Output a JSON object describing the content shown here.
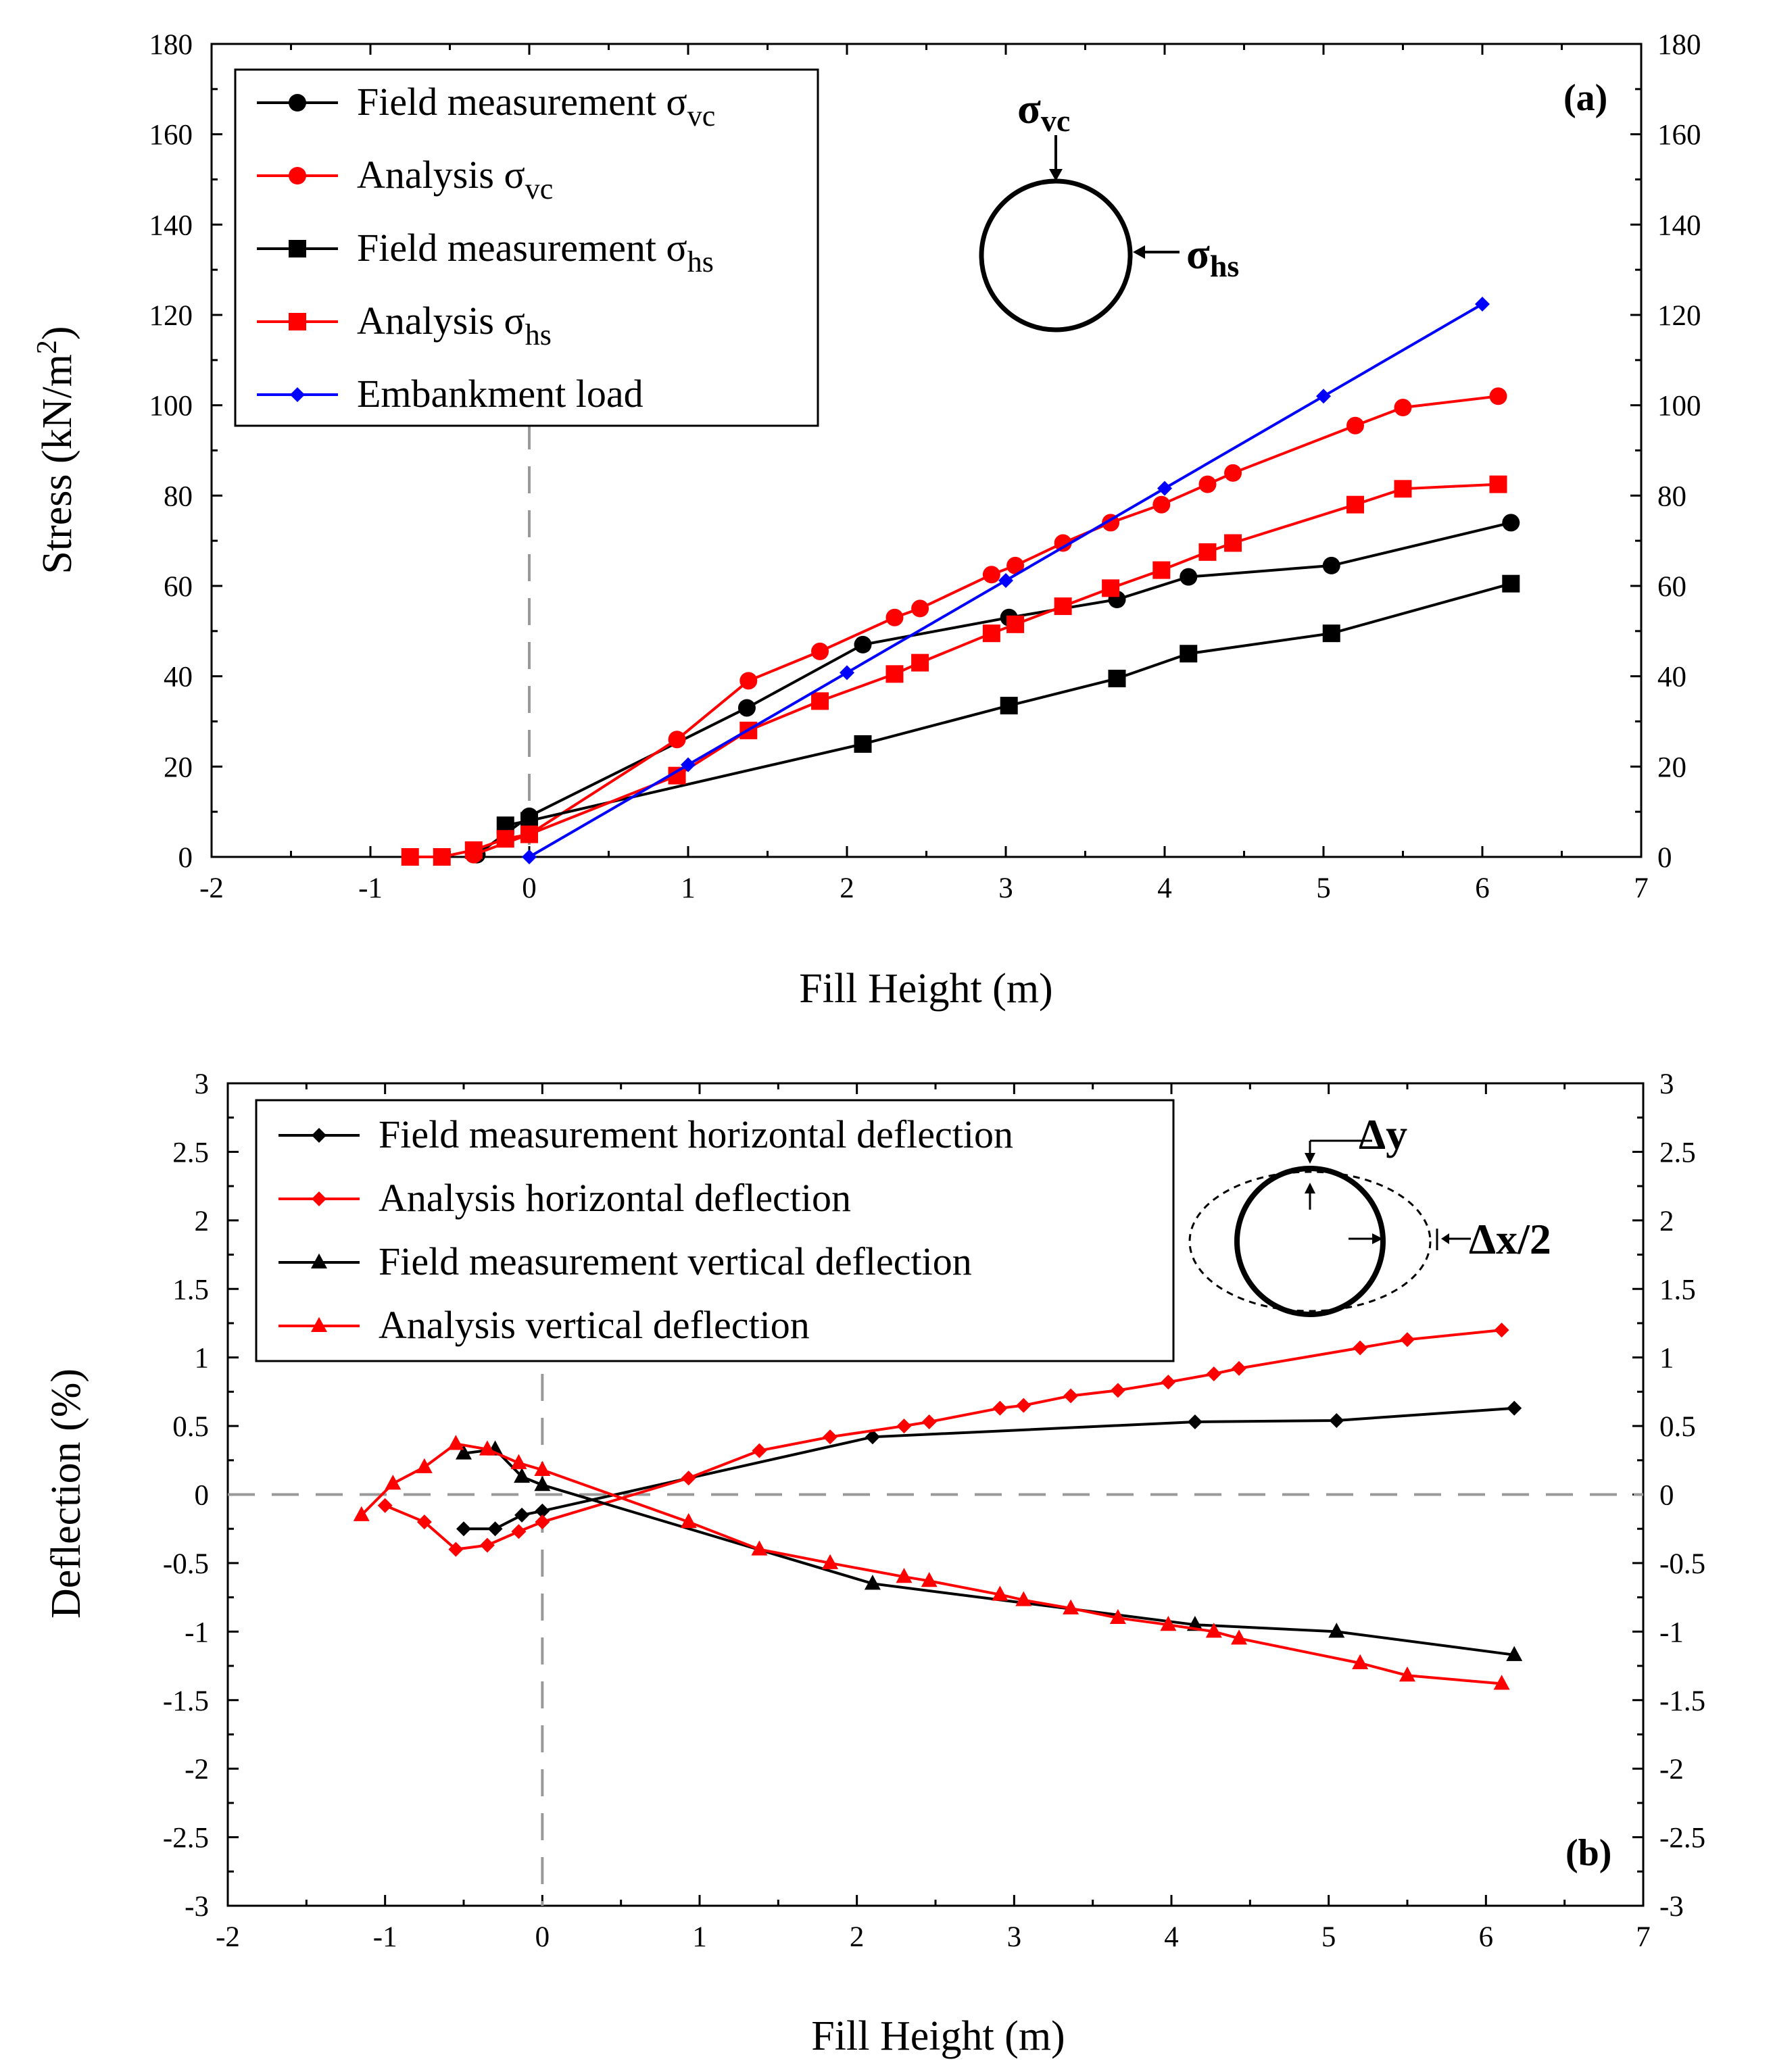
{
  "chart_data": [
    {
      "type": "line",
      "panel_label": "(a)",
      "xlabel": "Fill Height (m)",
      "ylabel": "Stress (kN/m²)",
      "ylabel_parts": {
        "base": "Stress (kN/m",
        "sup": "2",
        "end": ")"
      },
      "xlim": [
        -2,
        7
      ],
      "ylim": [
        0,
        180
      ],
      "xticks": [
        -2,
        -1,
        0,
        1,
        2,
        3,
        4,
        5,
        6,
        7
      ],
      "yticks": [
        0,
        20,
        40,
        60,
        80,
        100,
        120,
        140,
        160,
        180
      ],
      "grid": false,
      "legend_position": "top-left",
      "annotations": [
        {
          "text": "σvc",
          "base": "σ",
          "sub": "vc"
        },
        {
          "text": "σhs",
          "base": "σ",
          "sub": "hs"
        }
      ],
      "series": [
        {
          "name": "Field measurement σvc",
          "name_base": "Field measurement σ",
          "name_sub": "vc",
          "color": "#000000",
          "marker": "circle",
          "x": [
            -0.33,
            0.0,
            1.37,
            2.1,
            3.02,
            3.7,
            4.15,
            5.05,
            6.18
          ],
          "y": [
            0.5,
            9,
            33,
            47,
            53,
            57,
            62,
            64.5,
            74
          ]
        },
        {
          "name": "Analysis σvc",
          "name_base": "Analysis σ",
          "name_sub": "vc",
          "color": "#ff0000",
          "marker": "circle",
          "x": [
            -0.35,
            0.0,
            0.93,
            1.38,
            1.83,
            2.3,
            2.46,
            2.91,
            3.06,
            3.36,
            3.66,
            3.98,
            4.27,
            4.43,
            5.2,
            5.5,
            6.1
          ],
          "y": [
            0.5,
            5,
            26,
            39,
            45.5,
            53,
            55,
            62.5,
            64.5,
            69.5,
            74,
            78,
            82.5,
            85,
            95.5,
            99.5,
            102
          ]
        },
        {
          "name": "Field measurement σhs",
          "name_base": "Field measurement σ",
          "name_sub": "hs",
          "color": "#000000",
          "marker": "square",
          "x": [
            -0.15,
            0.0,
            2.1,
            3.02,
            3.7,
            4.15,
            5.05,
            6.18
          ],
          "y": [
            7,
            8,
            25,
            33.5,
            39.5,
            45,
            49.5,
            60.5
          ]
        },
        {
          "name": "Analysis σhs",
          "name_base": "Analysis σ",
          "name_sub": "hs",
          "color": "#ff0000",
          "marker": "square",
          "x": [
            -0.75,
            -0.55,
            -0.35,
            -0.15,
            0.0,
            0.93,
            1.38,
            1.83,
            2.3,
            2.46,
            2.91,
            3.06,
            3.36,
            3.66,
            3.98,
            4.27,
            4.43,
            5.2,
            5.5,
            6.1
          ],
          "y": [
            0,
            0,
            1.5,
            4,
            5,
            18,
            28,
            34.5,
            40.5,
            43,
            49.5,
            51.5,
            55.5,
            59.5,
            63.5,
            67.5,
            69.5,
            78,
            81.5,
            82.5
          ]
        },
        {
          "name": "Embankment load",
          "name_base": "Embankment load",
          "name_sub": "",
          "color": "#0000ff",
          "marker": "diamond",
          "x": [
            0,
            1,
            2,
            3,
            4,
            5,
            6
          ],
          "y": [
            0,
            20.4,
            40.8,
            61.2,
            81.6,
            102,
            122.4
          ]
        }
      ]
    },
    {
      "type": "line",
      "panel_label": "(b)",
      "xlabel": "Fill Height (m)",
      "ylabel": "Deflection (%)",
      "xlim": [
        -2,
        7
      ],
      "ylim": [
        -3,
        3
      ],
      "xticks": [
        -2,
        -1,
        0,
        1,
        2,
        3,
        4,
        5,
        6,
        7
      ],
      "yticks": [
        -3,
        -2.5,
        -2,
        -1.5,
        -1,
        -0.5,
        0,
        0.5,
        1,
        1.5,
        2,
        2.5,
        3
      ],
      "grid": false,
      "legend_position": "top-left",
      "annotations": [
        {
          "text": "Δy"
        },
        {
          "text": "Δx/2"
        }
      ],
      "series": [
        {
          "name": "Field measurement horizontal deflection",
          "color": "#000000",
          "marker": "diamond",
          "x": [
            -0.5,
            -0.3,
            -0.13,
            0.0,
            2.1,
            4.15,
            5.05,
            6.18
          ],
          "y": [
            -0.25,
            -0.25,
            -0.15,
            -0.12,
            0.42,
            0.53,
            0.54,
            0.63
          ]
        },
        {
          "name": "Analysis horizontal deflection",
          "color": "#ff0000",
          "marker": "diamond",
          "x": [
            -1.0,
            -0.75,
            -0.55,
            -0.35,
            -0.15,
            0.0,
            0.93,
            1.38,
            1.83,
            2.3,
            2.46,
            2.91,
            3.06,
            3.36,
            3.66,
            3.98,
            4.27,
            4.43,
            5.2,
            5.5,
            6.1
          ],
          "y": [
            -0.08,
            -0.2,
            -0.4,
            -0.37,
            -0.27,
            -0.2,
            0.12,
            0.32,
            0.42,
            0.5,
            0.53,
            0.63,
            0.65,
            0.72,
            0.76,
            0.82,
            0.88,
            0.92,
            1.07,
            1.13,
            1.2
          ]
        },
        {
          "name": "Field measurement vertical deflection",
          "color": "#000000",
          "marker": "triangle",
          "x": [
            -0.5,
            -0.3,
            -0.13,
            0.0,
            2.1,
            4.15,
            5.05,
            6.18
          ],
          "y": [
            0.3,
            0.33,
            0.13,
            0.07,
            -0.65,
            -0.95,
            -1.0,
            -1.17
          ]
        },
        {
          "name": "Analysis vertical deflection",
          "color": "#ff0000",
          "marker": "triangle",
          "x": [
            -1.15,
            -0.95,
            -0.75,
            -0.55,
            -0.35,
            -0.15,
            0.0,
            0.93,
            1.38,
            1.83,
            2.3,
            2.46,
            2.91,
            3.06,
            3.36,
            3.66,
            3.98,
            4.27,
            4.43,
            5.2,
            5.5,
            6.1
          ],
          "y": [
            -0.15,
            0.08,
            0.2,
            0.37,
            0.33,
            0.23,
            0.18,
            -0.2,
            -0.4,
            -0.5,
            -0.6,
            -0.63,
            -0.73,
            -0.77,
            -0.83,
            -0.9,
            -0.95,
            -1.0,
            -1.05,
            -1.23,
            -1.32,
            -1.38
          ]
        }
      ]
    }
  ]
}
